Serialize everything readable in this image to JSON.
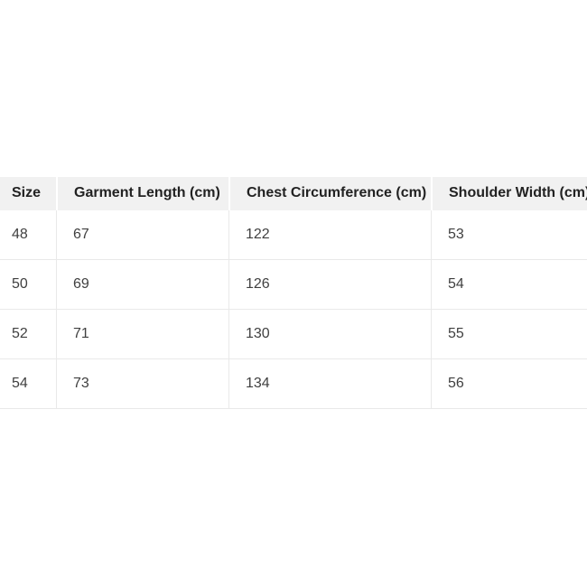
{
  "size_chart": {
    "columns": [
      {
        "label": "Size"
      },
      {
        "label": "Garment Length (cm)"
      },
      {
        "label": "Chest Circumference (cm)"
      },
      {
        "label": "Shoulder Width (cm)"
      }
    ],
    "rows": [
      [
        "48",
        "67",
        "122",
        "53"
      ],
      [
        "50",
        "69",
        "126",
        "54"
      ],
      [
        "52",
        "71",
        "130",
        "55"
      ],
      [
        "54",
        "73",
        "134",
        "56"
      ]
    ]
  },
  "colors": {
    "page_background": "#ffffff",
    "header_background": "#f1f1f1",
    "header_divider": "#ffffff",
    "body_border": "#e9e9e9",
    "header_text": "#222222",
    "body_text": "#404040"
  }
}
